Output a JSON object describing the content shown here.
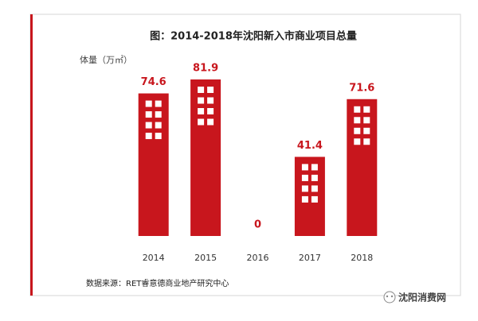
{
  "chart_data": {
    "type": "bar",
    "title": "图：2014-2018年沈阳新入市商业项目总量",
    "y_label": "体量（万㎡）",
    "categories": [
      "2014",
      "2015",
      "2016",
      "2017",
      "2018"
    ],
    "values": [
      74.6,
      81.9,
      0,
      41.4,
      71.6
    ],
    "color": "#c8161d",
    "source": "数据来源：RET睿意德商业地产研究中心",
    "watermark": "沈阳消费网"
  }
}
